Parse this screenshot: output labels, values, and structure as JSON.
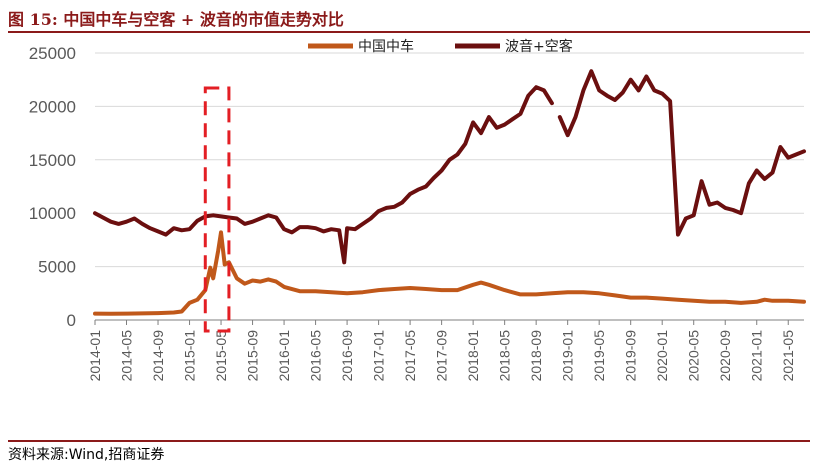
{
  "header": {
    "title": "图 15:  中国中车与空客 + 波音的市值走势对比"
  },
  "footer": {
    "source": "资料来源:Wind,招商证券"
  },
  "colors": {
    "accent": "#8b1a1a",
    "series_a": "#c0581a",
    "series_b": "#6b0f0f",
    "highlight": "#e31e24"
  },
  "chart_data": {
    "type": "line",
    "ylim": [
      0,
      25000
    ],
    "yticks": [
      0,
      5000,
      10000,
      15000,
      20000,
      25000
    ],
    "ytick_labels": [
      "0",
      "5000",
      "10000",
      "15000",
      "20000",
      "25000"
    ],
    "xlim": [
      "2014-01",
      "2021-07"
    ],
    "xtick_labels": [
      "2014-01",
      "2014-05",
      "2014-09",
      "2015-01",
      "2015-05",
      "2015-09",
      "2016-01",
      "2016-05",
      "2016-09",
      "2017-01",
      "2017-05",
      "2017-09",
      "2018-01",
      "2018-05",
      "2018-09",
      "2019-01",
      "2019-05",
      "2019-09",
      "2020-01",
      "2020-05",
      "2020-09",
      "2021-01",
      "2021-05"
    ],
    "legend_position": "top-center",
    "highlight_box": {
      "from": "2015-03",
      "to": "2015-06"
    },
    "series": [
      {
        "name": "中国中车",
        "points": [
          [
            "2014-01",
            600
          ],
          [
            "2014-03",
            580
          ],
          [
            "2014-05",
            600
          ],
          [
            "2014-07",
            620
          ],
          [
            "2014-09",
            650
          ],
          [
            "2014-11",
            700
          ],
          [
            "2014-12",
            800
          ],
          [
            "2015-01",
            1600
          ],
          [
            "2015-02",
            1900
          ],
          [
            "2015-03",
            2800
          ],
          [
            "2015-03-20",
            4900
          ],
          [
            "2015-04",
            3900
          ],
          [
            "2015-04-20",
            6500
          ],
          [
            "2015-05",
            8200
          ],
          [
            "2015-05-15",
            5200
          ],
          [
            "2015-06",
            5400
          ],
          [
            "2015-07",
            3900
          ],
          [
            "2015-08",
            3400
          ],
          [
            "2015-09",
            3700
          ],
          [
            "2015-10",
            3600
          ],
          [
            "2015-11",
            3800
          ],
          [
            "2015-12",
            3600
          ],
          [
            "2016-01",
            3100
          ],
          [
            "2016-03",
            2700
          ],
          [
            "2016-05",
            2700
          ],
          [
            "2016-07",
            2600
          ],
          [
            "2016-09",
            2500
          ],
          [
            "2016-11",
            2600
          ],
          [
            "2017-01",
            2800
          ],
          [
            "2017-03",
            2900
          ],
          [
            "2017-05",
            3000
          ],
          [
            "2017-07",
            2900
          ],
          [
            "2017-09",
            2800
          ],
          [
            "2017-11",
            2800
          ],
          [
            "2018-01",
            3300
          ],
          [
            "2018-02",
            3500
          ],
          [
            "2018-03",
            3300
          ],
          [
            "2018-05",
            2800
          ],
          [
            "2018-07",
            2400
          ],
          [
            "2018-09",
            2400
          ],
          [
            "2018-11",
            2500
          ],
          [
            "2019-01",
            2600
          ],
          [
            "2019-03",
            2600
          ],
          [
            "2019-05",
            2500
          ],
          [
            "2019-07",
            2300
          ],
          [
            "2019-09",
            2100
          ],
          [
            "2019-11",
            2100
          ],
          [
            "2020-01",
            2000
          ],
          [
            "2020-03",
            1900
          ],
          [
            "2020-05",
            1800
          ],
          [
            "2020-07",
            1700
          ],
          [
            "2020-09",
            1700
          ],
          [
            "2020-11",
            1600
          ],
          [
            "2021-01",
            1700
          ],
          [
            "2021-02",
            1900
          ],
          [
            "2021-03",
            1800
          ],
          [
            "2021-05",
            1800
          ],
          [
            "2021-07",
            1700
          ]
        ]
      },
      {
        "name": "波音+空客",
        "segments": [
          [
            [
              "2014-01",
              10000
            ],
            [
              "2014-02",
              9600
            ],
            [
              "2014-03",
              9200
            ],
            [
              "2014-04",
              9000
            ],
            [
              "2014-05",
              9200
            ],
            [
              "2014-06",
              9500
            ],
            [
              "2014-07",
              9000
            ],
            [
              "2014-08",
              8600
            ],
            [
              "2014-09",
              8300
            ],
            [
              "2014-10",
              8000
            ],
            [
              "2014-11",
              8600
            ],
            [
              "2014-12",
              8400
            ],
            [
              "2015-01",
              8500
            ],
            [
              "2015-02",
              9300
            ],
            [
              "2015-03",
              9700
            ],
            [
              "2015-04",
              9800
            ],
            [
              "2015-05",
              9700
            ],
            [
              "2015-06",
              9600
            ],
            [
              "2015-07",
              9500
            ],
            [
              "2015-08",
              9000
            ],
            [
              "2015-09",
              9200
            ],
            [
              "2015-10",
              9500
            ],
            [
              "2015-11",
              9800
            ],
            [
              "2015-12",
              9600
            ],
            [
              "2016-01",
              8500
            ],
            [
              "2016-02",
              8200
            ],
            [
              "2016-03",
              8700
            ],
            [
              "2016-04",
              8700
            ],
            [
              "2016-05",
              8600
            ],
            [
              "2016-06",
              8300
            ],
            [
              "2016-07",
              8500
            ],
            [
              "2016-08",
              8400
            ],
            [
              "2016-08-20",
              5400
            ],
            [
              "2016-09",
              8600
            ],
            [
              "2016-10",
              8500
            ],
            [
              "2016-11",
              9000
            ],
            [
              "2016-12",
              9500
            ],
            [
              "2017-01",
              10200
            ],
            [
              "2017-02",
              10500
            ],
            [
              "2017-03",
              10600
            ],
            [
              "2017-04",
              11000
            ],
            [
              "2017-05",
              11800
            ],
            [
              "2017-06",
              12200
            ],
            [
              "2017-07",
              12500
            ],
            [
              "2017-08",
              13300
            ],
            [
              "2017-09",
              14000
            ],
            [
              "2017-10",
              15000
            ],
            [
              "2017-11",
              15500
            ],
            [
              "2017-12",
              16500
            ],
            [
              "2018-01",
              18500
            ],
            [
              "2018-02",
              17500
            ],
            [
              "2018-03",
              19000
            ],
            [
              "2018-04",
              18000
            ],
            [
              "2018-05",
              18300
            ],
            [
              "2018-06",
              18800
            ],
            [
              "2018-07",
              19300
            ],
            [
              "2018-08",
              21000
            ],
            [
              "2018-09",
              21800
            ],
            [
              "2018-10",
              21500
            ],
            [
              "2018-11",
              20300
            ]
          ],
          [
            [
              "2018-12",
              19000
            ],
            [
              "2019-01",
              17300
            ],
            [
              "2019-02",
              19000
            ],
            [
              "2019-03",
              21500
            ],
            [
              "2019-04",
              23300
            ],
            [
              "2019-05",
              21500
            ],
            [
              "2019-06",
              21000
            ],
            [
              "2019-07",
              20600
            ],
            [
              "2019-08",
              21300
            ],
            [
              "2019-09",
              22500
            ],
            [
              "2019-10",
              21500
            ],
            [
              "2019-11",
              22800
            ],
            [
              "2019-12",
              21500
            ],
            [
              "2020-01",
              21200
            ],
            [
              "2020-02",
              20500
            ],
            [
              "2020-03",
              8000
            ],
            [
              "2020-04",
              9500
            ],
            [
              "2020-05",
              9800
            ],
            [
              "2020-06",
              13000
            ],
            [
              "2020-07",
              10800
            ],
            [
              "2020-08",
              11000
            ],
            [
              "2020-09",
              10500
            ],
            [
              "2020-10",
              10300
            ],
            [
              "2020-11",
              10000
            ],
            [
              "2020-12",
              12800
            ],
            [
              "2021-01",
              14000
            ],
            [
              "2021-02",
              13200
            ],
            [
              "2021-03",
              13800
            ],
            [
              "2021-04",
              16200
            ],
            [
              "2021-05",
              15200
            ],
            [
              "2021-06",
              15500
            ],
            [
              "2021-07",
              15800
            ]
          ]
        ]
      }
    ]
  }
}
